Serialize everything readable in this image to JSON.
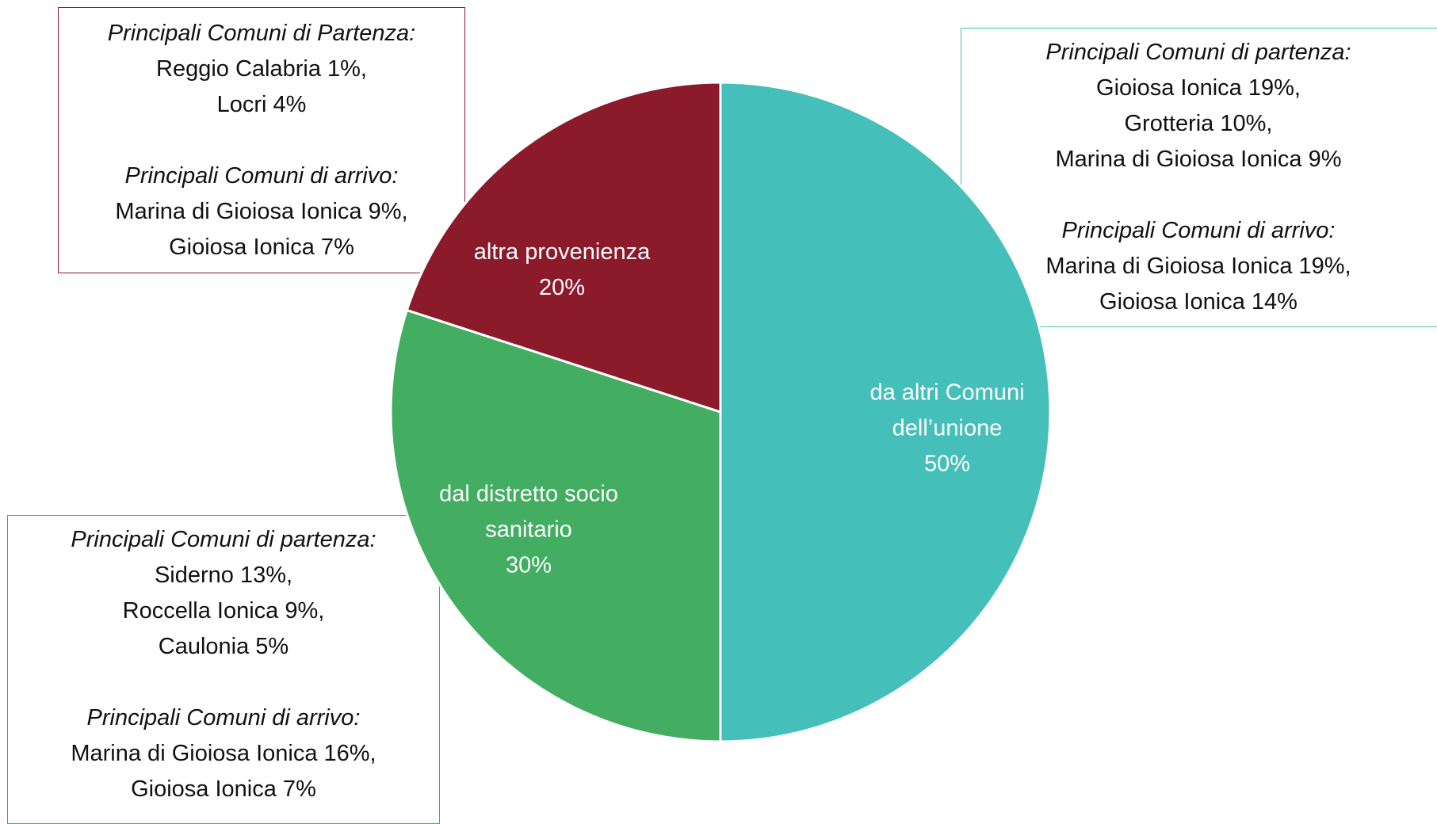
{
  "chart_data": {
    "type": "pie",
    "categories": [
      "da altri Comuni dell’unione",
      "dal distretto socio sanitario",
      "altra provenienza"
    ],
    "values": [
      50,
      30,
      20
    ],
    "value_labels": [
      "50%",
      "30%",
      "20%"
    ],
    "colors": [
      "#45bfb9",
      "#43ad61",
      "#8b1a2b"
    ],
    "annotations": [
      {
        "color": "#45bfb9",
        "sections": [
          {
            "heading": "Principali Comuni di partenza:",
            "items": [
              "Gioiosa Ionica 19%,",
              "Grotteria 10%,",
              "Marina di Gioiosa Ionica 9%"
            ]
          },
          {
            "heading": "Principali Comuni di arrivo:",
            "items": [
              "Marina di Gioiosa Ionica 19%,",
              "Gioiosa Ionica 14%"
            ]
          }
        ]
      },
      {
        "color": "#43ad61",
        "sections": [
          {
            "heading": "Principali Comuni di partenza:",
            "items": [
              "Siderno 13%,",
              "Roccella Ionica 9%,",
              "Caulonia 5%"
            ]
          },
          {
            "heading": "Principali Comuni di arrivo:",
            "items": [
              "Marina di Gioiosa Ionica 16%,",
              "Gioiosa Ionica 7%"
            ]
          }
        ]
      },
      {
        "color": "#8b1a2b",
        "sections": [
          {
            "heading": "Principali Comuni di Partenza:",
            "items": [
              "Reggio Calabria 1%,",
              "Locri 4%"
            ]
          },
          {
            "heading": "Principali Comuni di arrivo:",
            "items": [
              "Marina di Gioiosa Ionica 9%,",
              "Gioiosa Ionica 7%"
            ]
          }
        ]
      }
    ]
  }
}
